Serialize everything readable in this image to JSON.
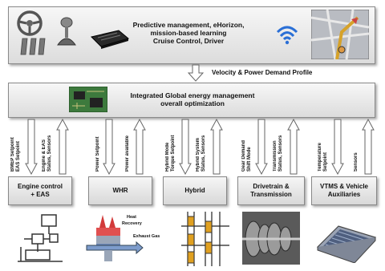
{
  "top_box": {
    "lines": [
      "Predictive management, eHorizon,",
      "mission-based learning",
      "Cruise Control, Driver"
    ]
  },
  "profile_label": "Velocity & Power Demand Profile",
  "middle_box": {
    "lines": [
      "Integrated Global energy management",
      "overall optimization"
    ]
  },
  "modules": [
    {
      "name": "Engine control + EAS",
      "lines": [
        "Engine control",
        "+ EAS"
      ],
      "down_label": "BMEP Setpoint\nEAS Setpoint",
      "up_label": "Engine & EAS\nStatus, Sensors"
    },
    {
      "name": "WHR",
      "lines": [
        "WHR"
      ],
      "down_label": "Power Setpoint",
      "up_label": "Power available"
    },
    {
      "name": "Hybrid",
      "lines": [
        "Hybrid"
      ],
      "down_label": "Hybrid Mode\nTorque Setpoint",
      "up_label": "Hybrid System\nStatus, Sensors"
    },
    {
      "name": "Drivetrain & Transmission",
      "lines": [
        "Drivetrain &",
        "Transmission"
      ],
      "down_label": "Gear Demand\nShift Mode",
      "up_label": "Transmission\nStatus, Sensors"
    },
    {
      "name": "VTMS & Vehicle Auxiliaries",
      "lines": [
        "VTMS & Vehicle",
        "Auxiliaries"
      ],
      "down_label": "Temperature\nSetpoint",
      "up_label": "Sensors"
    }
  ],
  "whr_icon": {
    "heat_label": "Heat",
    "recovery_label": "Recovery",
    "exhaust_label": "Exhaust Gas"
  },
  "icons": [
    "steering-wheel-icon",
    "gear-shifter-icon",
    "ecu-icon",
    "wifi-icon",
    "navigation-map-icon",
    "circuit-board-icon",
    "engine-diagram-icon",
    "heat-recovery-icon",
    "hybrid-gear-icon",
    "transmission-icon",
    "heat-exchanger-icon"
  ]
}
